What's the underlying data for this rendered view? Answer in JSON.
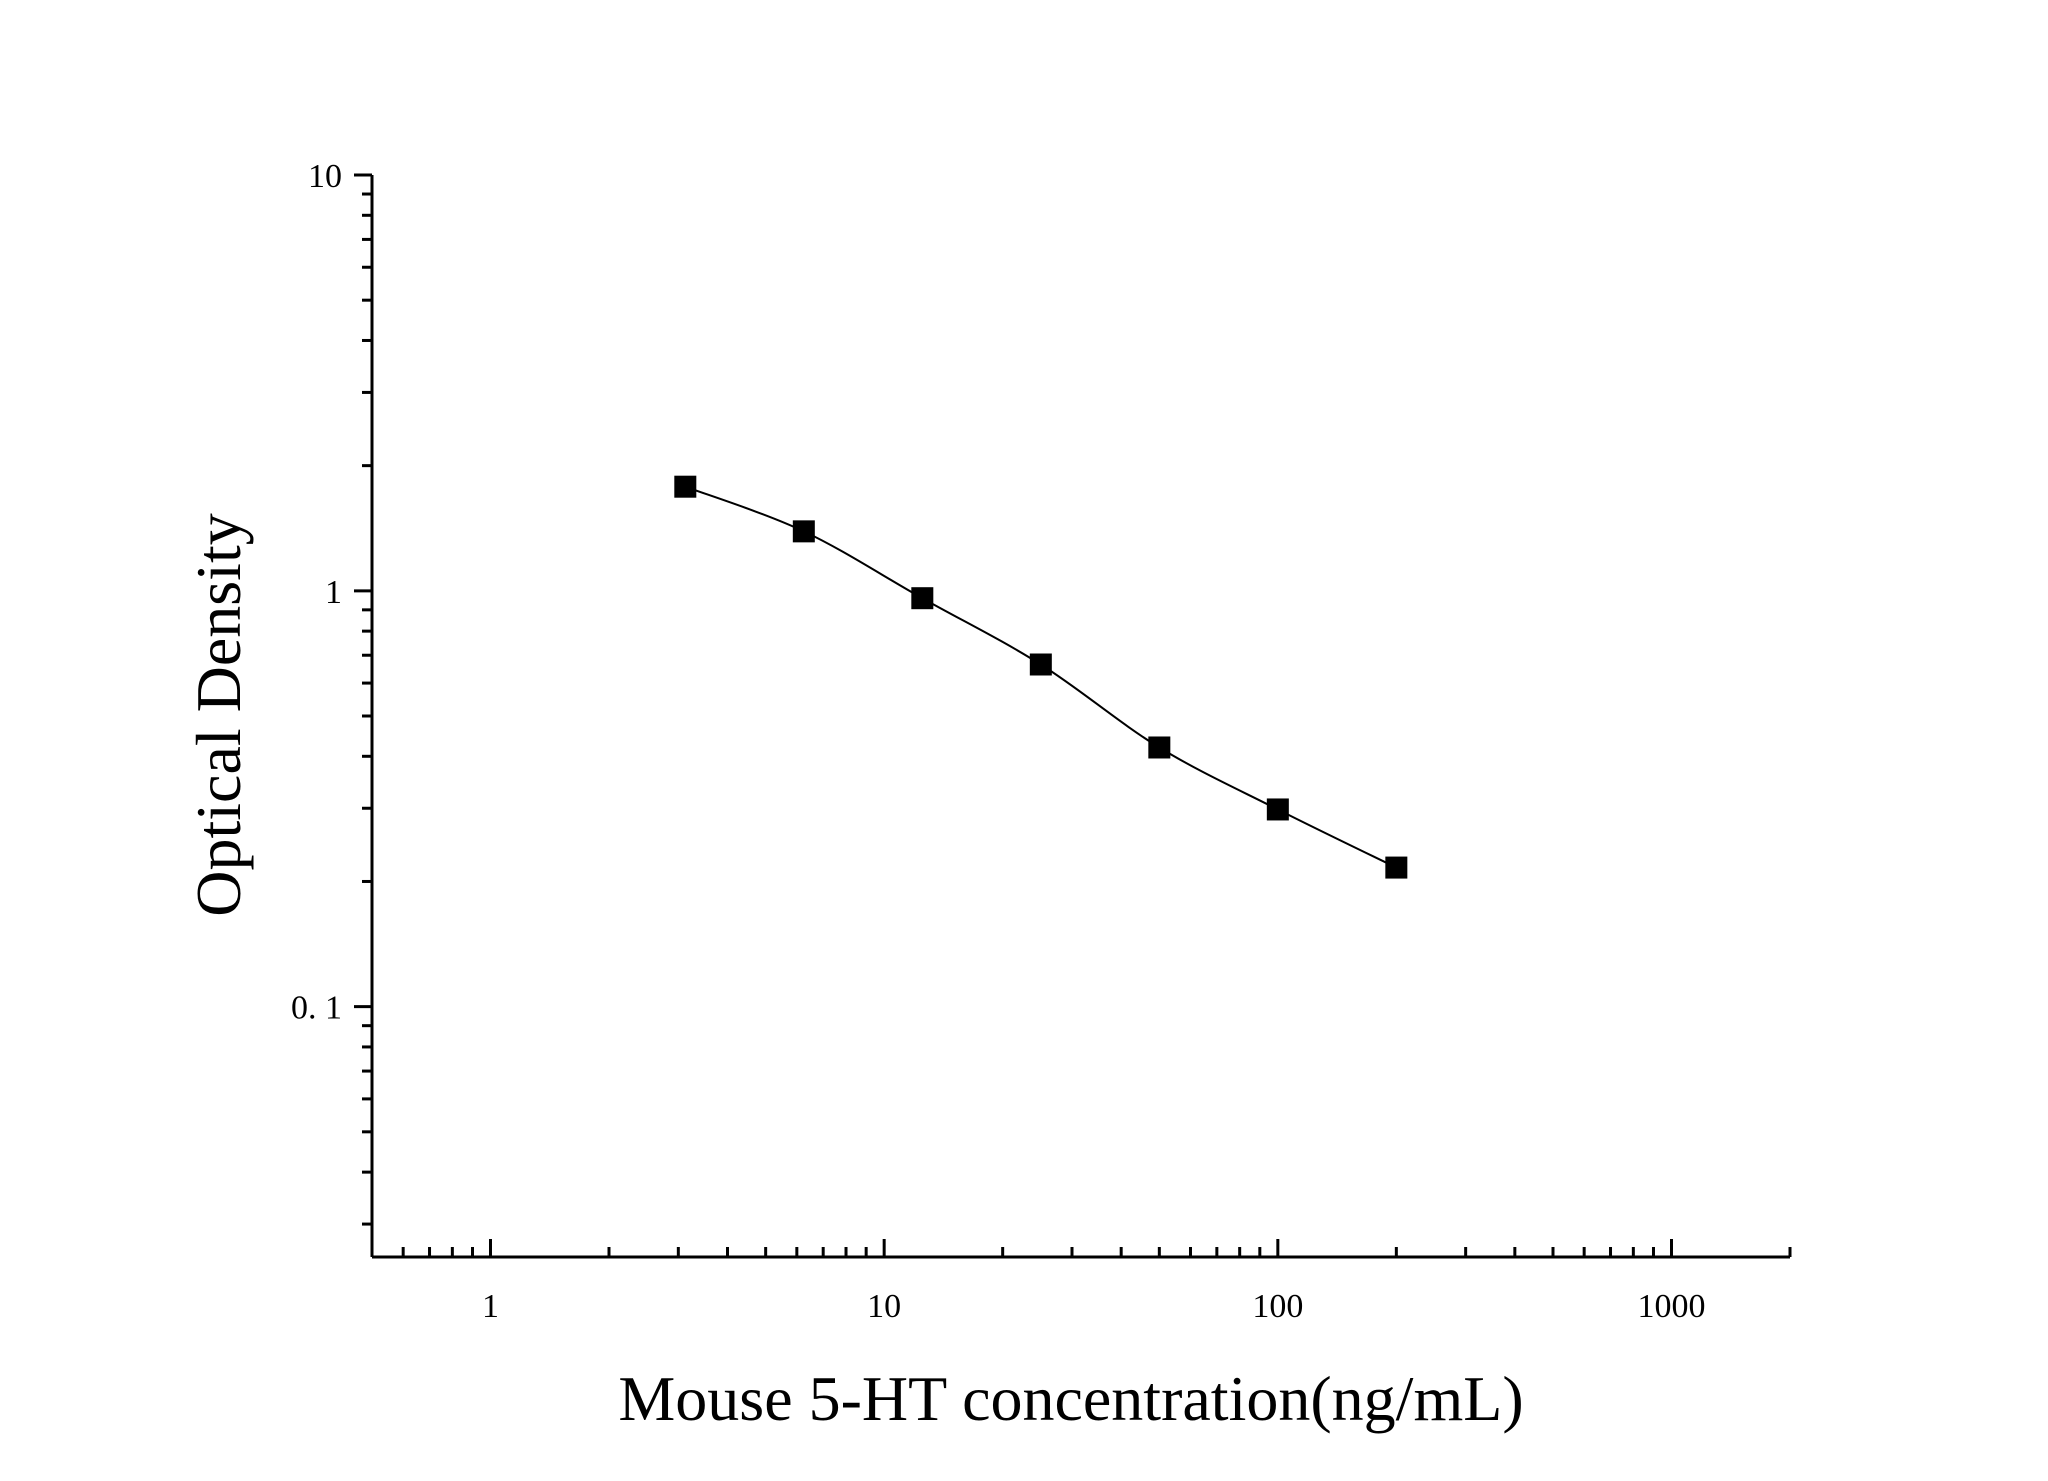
{
  "chart_data": {
    "type": "scatter",
    "xlabel": "Mouse 5-HT concentration(ng/mL)",
    "ylabel": "Optical Density",
    "x_scale": "log",
    "y_scale": "log",
    "xlim": [
      0.5,
      2000
    ],
    "ylim": [
      0.025,
      10
    ],
    "x_ticks": [
      1,
      10,
      100,
      1000
    ],
    "x_tick_labels": [
      "1",
      "10",
      "100",
      "1000"
    ],
    "y_ticks": [
      0.1,
      1,
      10
    ],
    "y_tick_labels": [
      "0. 1",
      "1",
      "10"
    ],
    "grid": false,
    "legend": "none",
    "marker": "square",
    "color": "#000000",
    "series": [
      {
        "x": [
          3.125,
          6.25,
          12.5,
          25,
          50,
          100,
          200
        ],
        "y": [
          1.78,
          1.39,
          0.96,
          0.665,
          0.42,
          0.298,
          0.216
        ]
      }
    ],
    "fit_curve": true
  }
}
